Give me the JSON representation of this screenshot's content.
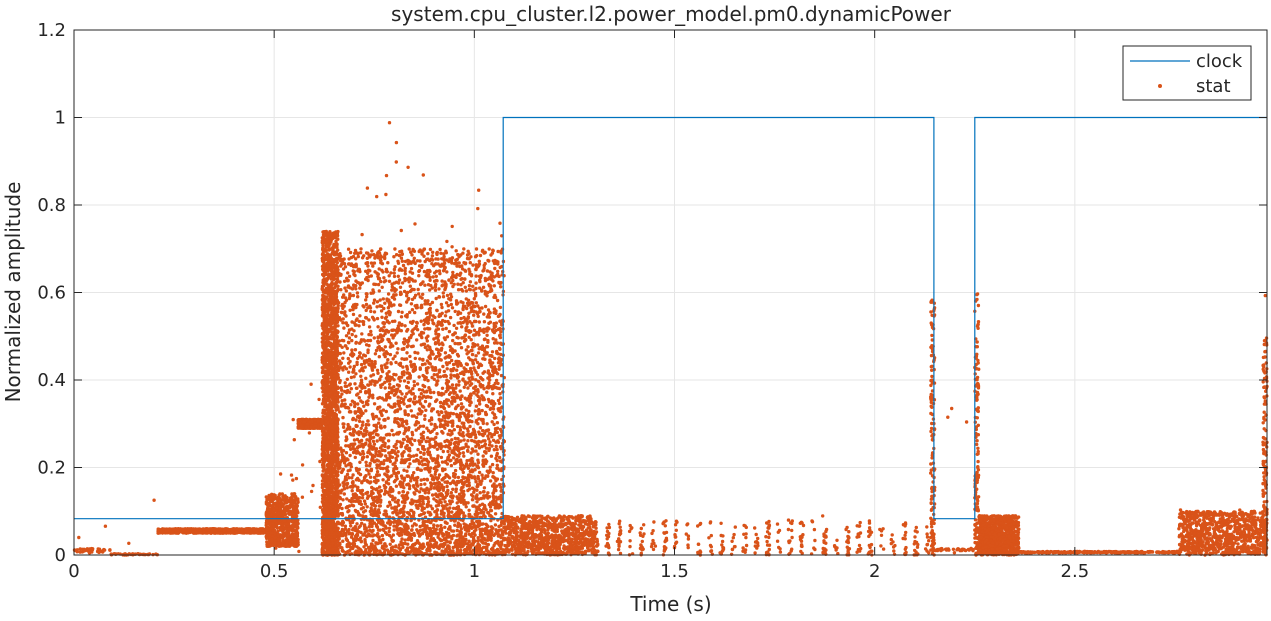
{
  "chart_data": {
    "type": "line",
    "title": "system.cpu_cluster.l2.power_model.pm0.dynamicPower",
    "xlabel": "Time (s)",
    "ylabel": "Normalized amplitude",
    "xlim": [
      0,
      2.98
    ],
    "ylim": [
      0,
      1.2
    ],
    "xticks": [
      0,
      0.5,
      1,
      1.5,
      2,
      2.5
    ],
    "xtick_labels": [
      "0",
      "0.5",
      "1",
      "1.5",
      "2",
      "2.5"
    ],
    "yticks": [
      0,
      0.2,
      0.4,
      0.6,
      0.8,
      1,
      1.2
    ],
    "ytick_labels": [
      "0",
      "0.2",
      "0.4",
      "0.6",
      "0.8",
      "1",
      "1.2"
    ],
    "grid": true,
    "legend_position": "top-right",
    "colors": {
      "clock": "#0072BD",
      "stat": "#D95319",
      "grid": "#e6e6e6",
      "axis": "#262626"
    },
    "series": [
      {
        "name": "clock",
        "kind": "line",
        "x": [
          0,
          1.072,
          1.072,
          2.148,
          2.148,
          2.25,
          2.25,
          2.98
        ],
        "y": [
          0.083,
          0.083,
          1,
          1,
          0.083,
          0.083,
          1,
          1
        ]
      },
      {
        "name": "stat",
        "kind": "markers",
        "segments": [
          {
            "x0": 0.0,
            "x1": 0.09,
            "base": 0.005,
            "spread": 0.01,
            "max": 0.14,
            "density": "sparse"
          },
          {
            "x0": 0.09,
            "x1": 0.21,
            "base": 0.0,
            "spread": 0.003,
            "max": 0.22,
            "density": "sparse"
          },
          {
            "x0": 0.21,
            "x1": 0.48,
            "base": 0.05,
            "spread": 0.01,
            "max": 0.06,
            "density": "band"
          },
          {
            "x0": 0.48,
            "x1": 0.56,
            "base": 0.02,
            "spread": 0.12,
            "max": 0.36,
            "density": "dense"
          },
          {
            "x0": 0.56,
            "x1": 0.62,
            "base": 0.29,
            "spread": 0.02,
            "max": 0.47,
            "density": "dense"
          },
          {
            "x0": 0.62,
            "x1": 0.66,
            "base": 0.0,
            "spread": 0.74,
            "max": 0.74,
            "density": "full"
          },
          {
            "x0": 0.66,
            "x1": 0.88,
            "base": 0.0,
            "spread": 0.7,
            "max": 1.0,
            "density": "full"
          },
          {
            "x0": 0.88,
            "x1": 1.075,
            "base": 0.0,
            "spread": 0.7,
            "max": 0.84,
            "density": "full"
          },
          {
            "x0": 1.075,
            "x1": 1.3,
            "base": 0.0,
            "spread": 0.09,
            "max": 0.1,
            "density": "band"
          },
          {
            "x0": 1.3,
            "x1": 2.15,
            "base": 0.0,
            "spread": 0.08,
            "max": 0.09,
            "density": "bursts"
          },
          {
            "x0": 2.14,
            "x1": 2.15,
            "base": 0.0,
            "spread": 0.6,
            "max": 0.63,
            "density": "spike"
          },
          {
            "x0": 2.15,
            "x1": 2.25,
            "base": 0.01,
            "spread": 0.005,
            "max": 0.5,
            "density": "sparse"
          },
          {
            "x0": 2.25,
            "x1": 2.26,
            "base": 0.0,
            "spread": 0.6,
            "max": 0.6,
            "density": "spike"
          },
          {
            "x0": 2.26,
            "x1": 2.36,
            "base": 0.0,
            "spread": 0.09,
            "max": 0.1,
            "density": "band"
          },
          {
            "x0": 2.36,
            "x1": 2.76,
            "base": 0.005,
            "spread": 0.003,
            "max": 0.01,
            "density": "flat"
          },
          {
            "x0": 2.76,
            "x1": 2.98,
            "base": 0.0,
            "spread": 0.1,
            "max": 0.11,
            "density": "band"
          },
          {
            "x0": 2.97,
            "x1": 2.98,
            "base": 0.0,
            "spread": 0.5,
            "max": 0.6,
            "density": "spike"
          }
        ]
      }
    ]
  }
}
